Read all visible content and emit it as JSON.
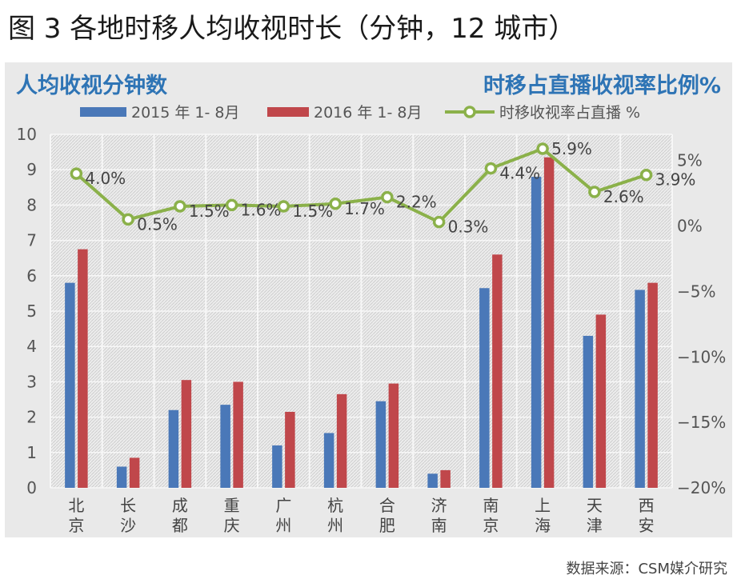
{
  "figure_title": "图 3 各地时移人均收视时长（分钟，12 城市）",
  "source": "数据来源：CSM媒介研究",
  "colors": {
    "series_2015": "#4a78b8",
    "series_2016": "#c0474b",
    "line": "#8bb14a",
    "panel_bg": "#e9e9e9",
    "header_text": "#2e74b5"
  },
  "chart_data": {
    "type": "bar",
    "title_left": "人均收视分钟数",
    "title_right": "时移占直播收视率比例%",
    "categories": [
      "北京",
      "长沙",
      "成都",
      "重庆",
      "广州",
      "杭州",
      "合肥",
      "济南",
      "南京",
      "上海",
      "天津",
      "西安"
    ],
    "series": [
      {
        "name": "2015 年 1- 8月",
        "type": "bar",
        "axis": "left",
        "values": [
          5.8,
          0.6,
          2.2,
          2.35,
          1.2,
          1.55,
          2.45,
          0.4,
          5.65,
          8.8,
          4.3,
          5.6
        ]
      },
      {
        "name": "2016  年 1- 8月",
        "type": "bar",
        "axis": "left",
        "values": [
          6.75,
          0.85,
          3.05,
          3.0,
          2.15,
          2.65,
          2.95,
          0.5,
          6.6,
          9.35,
          4.9,
          5.8
        ]
      },
      {
        "name": "时移收视率占直播 %",
        "type": "line",
        "axis": "right",
        "values": [
          4.0,
          0.5,
          1.5,
          1.6,
          1.5,
          1.7,
          2.2,
          0.3,
          4.4,
          5.9,
          2.6,
          3.9
        ],
        "labels": [
          "4.0%",
          "0.5%",
          "1.5%",
          "1.6%",
          "1.5%",
          "1.7%",
          "2.2%",
          "0.3%",
          "4.4%",
          "5.9%",
          "2.6%",
          "3.9%"
        ]
      }
    ],
    "y_left": {
      "min": 0,
      "max": 10,
      "ticks": [
        "0",
        "1",
        "2",
        "3",
        "4",
        "5",
        "6",
        "7",
        "8",
        "9",
        "10"
      ]
    },
    "y_right": {
      "min": -20,
      "max": 7,
      "ticks": [
        {
          "value": 5,
          "label": "5%"
        },
        {
          "value": 0,
          "label": "0%"
        },
        {
          "value": -5,
          "label": "−5%"
        },
        {
          "value": -10,
          "label": "−10%"
        },
        {
          "value": -15,
          "label": "−15%"
        },
        {
          "value": -20,
          "label": "−20%"
        }
      ]
    },
    "legend_position": "top",
    "grid": true
  }
}
